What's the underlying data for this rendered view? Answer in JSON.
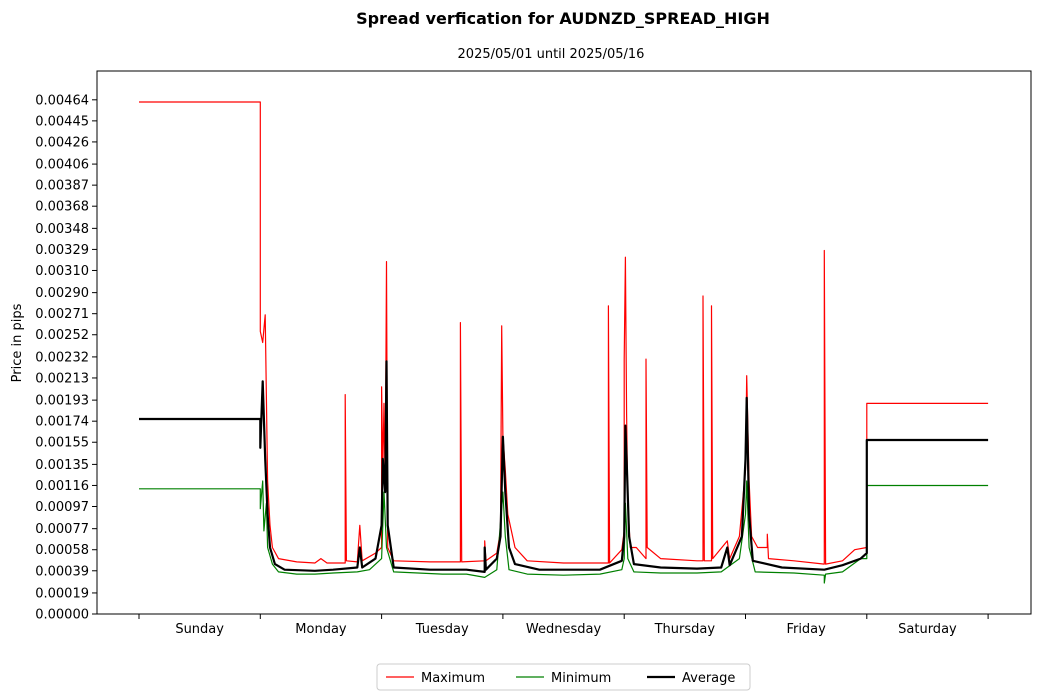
{
  "chart_data": {
    "type": "line",
    "title": "Spread verfication for AUDNZD_SPREAD_HIGH",
    "subtitle": "2025/05/01 until 2025/05/16",
    "xlabel": "",
    "ylabel": "Price in pips",
    "ylim": [
      0,
      0.0049
    ],
    "xlim": [
      -0.35,
      7.35
    ],
    "y_ticks": [
      "0.00000",
      "0.00019",
      "0.00039",
      "0.00058",
      "0.00077",
      "0.00097",
      "0.00116",
      "0.00135",
      "0.00155",
      "0.00174",
      "0.00193",
      "0.00213",
      "0.00232",
      "0.00252",
      "0.00271",
      "0.00290",
      "0.00310",
      "0.00329",
      "0.00348",
      "0.00368",
      "0.00387",
      "0.00406",
      "0.00426",
      "0.00445",
      "0.00464"
    ],
    "x_categories": [
      "Sunday",
      "Monday",
      "Tuesday",
      "Wednesday",
      "Thursday",
      "Friday",
      "Saturday"
    ],
    "grid": false,
    "legend_position": "bottom-center",
    "series": [
      {
        "name": "Maximum",
        "color": "#ff0000",
        "width": 1.2,
        "points": [
          [
            0,
            0.00462
          ],
          [
            1.0,
            0.00462
          ],
          [
            1.0,
            0.00255
          ],
          [
            1.02,
            0.00245
          ],
          [
            1.04,
            0.0027
          ],
          [
            1.06,
            0.0012
          ],
          [
            1.08,
            0.0008
          ],
          [
            1.1,
            0.0006
          ],
          [
            1.15,
            0.0005
          ],
          [
            1.3,
            0.00047
          ],
          [
            1.45,
            0.00046
          ],
          [
            1.5,
            0.0005
          ],
          [
            1.55,
            0.00046
          ],
          [
            1.7,
            0.00046
          ],
          [
            1.7,
            0.00198
          ],
          [
            1.71,
            0.00048
          ],
          [
            1.8,
            0.00047
          ],
          [
            1.82,
            0.0008
          ],
          [
            1.84,
            0.00048
          ],
          [
            1.95,
            0.00055
          ],
          [
            2.0,
            0.0006
          ],
          [
            2.0,
            0.00205
          ],
          [
            2.01,
            0.0013
          ],
          [
            2.02,
            0.0019
          ],
          [
            2.03,
            0.0011
          ],
          [
            2.04,
            0.00318
          ],
          [
            2.05,
            0.0006
          ],
          [
            2.1,
            0.00048
          ],
          [
            2.4,
            0.00047
          ],
          [
            2.6,
            0.00047
          ],
          [
            2.65,
            0.00047
          ],
          [
            2.65,
            0.00263
          ],
          [
            2.66,
            0.00047
          ],
          [
            2.85,
            0.00048
          ],
          [
            2.85,
            0.00066
          ],
          [
            2.86,
            0.00048
          ],
          [
            2.95,
            0.00055
          ],
          [
            2.98,
            0.00075
          ],
          [
            2.99,
            0.0026
          ],
          [
            3.0,
            0.0016
          ],
          [
            3.02,
            0.0013
          ],
          [
            3.04,
            0.0009
          ],
          [
            3.1,
            0.0006
          ],
          [
            3.2,
            0.00048
          ],
          [
            3.5,
            0.00046
          ],
          [
            3.8,
            0.00046
          ],
          [
            3.87,
            0.00046
          ],
          [
            3.87,
            0.00278
          ],
          [
            3.88,
            0.00046
          ],
          [
            3.98,
            0.00058
          ],
          [
            4.0,
            0.00075
          ],
          [
            4.0,
            0.0023
          ],
          [
            4.01,
            0.00322
          ],
          [
            4.02,
            0.0018
          ],
          [
            4.03,
            0.001
          ],
          [
            4.05,
            0.0006
          ],
          [
            4.1,
            0.0006
          ],
          [
            4.18,
            0.0005
          ],
          [
            4.18,
            0.0023
          ],
          [
            4.19,
            0.0006
          ],
          [
            4.3,
            0.0005
          ],
          [
            4.6,
            0.00048
          ],
          [
            4.65,
            0.00048
          ],
          [
            4.65,
            0.00287
          ],
          [
            4.66,
            0.00048
          ],
          [
            4.72,
            0.00048
          ],
          [
            4.72,
            0.00278
          ],
          [
            4.73,
            0.0005
          ],
          [
            4.85,
            0.00066
          ],
          [
            4.87,
            0.0005
          ],
          [
            4.95,
            0.0007
          ],
          [
            5.0,
            0.0013
          ],
          [
            5.01,
            0.00215
          ],
          [
            5.03,
            0.0012
          ],
          [
            5.05,
            0.0007
          ],
          [
            5.1,
            0.0006
          ],
          [
            5.18,
            0.0006
          ],
          [
            5.18,
            0.00072
          ],
          [
            5.19,
            0.0005
          ],
          [
            5.4,
            0.00048
          ],
          [
            5.65,
            0.00045
          ],
          [
            5.65,
            0.00328
          ],
          [
            5.66,
            0.00045
          ],
          [
            5.8,
            0.00048
          ],
          [
            5.9,
            0.00058
          ],
          [
            6.0,
            0.0006
          ],
          [
            6.0,
            0.0019
          ],
          [
            7.0,
            0.0019
          ]
        ]
      },
      {
        "name": "Minimum",
        "color": "#008000",
        "width": 1.2,
        "points": [
          [
            0,
            0.00113
          ],
          [
            1.0,
            0.00113
          ],
          [
            1.0,
            0.00095
          ],
          [
            1.02,
            0.0012
          ],
          [
            1.03,
            0.00075
          ],
          [
            1.05,
            0.001
          ],
          [
            1.06,
            0.0006
          ],
          [
            1.1,
            0.00045
          ],
          [
            1.15,
            0.00038
          ],
          [
            1.3,
            0.00036
          ],
          [
            1.45,
            0.00036
          ],
          [
            1.6,
            0.00037
          ],
          [
            1.8,
            0.00038
          ],
          [
            1.9,
            0.0004
          ],
          [
            2.0,
            0.0005
          ],
          [
            2.02,
            0.0011
          ],
          [
            2.04,
            0.0006
          ],
          [
            2.1,
            0.00038
          ],
          [
            2.3,
            0.00037
          ],
          [
            2.5,
            0.00036
          ],
          [
            2.7,
            0.00036
          ],
          [
            2.85,
            0.00033
          ],
          [
            2.95,
            0.0004
          ],
          [
            3.0,
            0.0011
          ],
          [
            3.02,
            0.0007
          ],
          [
            3.05,
            0.0004
          ],
          [
            3.2,
            0.00036
          ],
          [
            3.5,
            0.00035
          ],
          [
            3.8,
            0.00036
          ],
          [
            3.98,
            0.0004
          ],
          [
            4.0,
            0.0005
          ],
          [
            4.01,
            0.001
          ],
          [
            4.03,
            0.0005
          ],
          [
            4.08,
            0.00038
          ],
          [
            4.3,
            0.00037
          ],
          [
            4.6,
            0.00037
          ],
          [
            4.8,
            0.00038
          ],
          [
            4.95,
            0.0005
          ],
          [
            5.0,
            0.0009
          ],
          [
            5.01,
            0.0012
          ],
          [
            5.03,
            0.0006
          ],
          [
            5.08,
            0.00038
          ],
          [
            5.4,
            0.00037
          ],
          [
            5.65,
            0.00035
          ],
          [
            5.65,
            0.00028
          ],
          [
            5.66,
            0.00036
          ],
          [
            5.8,
            0.00038
          ],
          [
            5.95,
            0.0005
          ],
          [
            6.0,
            0.0005
          ],
          [
            6.0,
            0.00116
          ],
          [
            7.0,
            0.00116
          ]
        ]
      },
      {
        "name": "Average",
        "color": "#000000",
        "width": 2.2,
        "points": [
          [
            0,
            0.00176
          ],
          [
            1.0,
            0.00176
          ],
          [
            1.0,
            0.0015
          ],
          [
            1.02,
            0.0021
          ],
          [
            1.04,
            0.0014
          ],
          [
            1.06,
            0.0009
          ],
          [
            1.08,
            0.0006
          ],
          [
            1.12,
            0.00045
          ],
          [
            1.2,
            0.0004
          ],
          [
            1.45,
            0.00039
          ],
          [
            1.6,
            0.0004
          ],
          [
            1.8,
            0.00042
          ],
          [
            1.82,
            0.0006
          ],
          [
            1.84,
            0.00042
          ],
          [
            1.95,
            0.0005
          ],
          [
            2.0,
            0.0008
          ],
          [
            2.01,
            0.0014
          ],
          [
            2.03,
            0.0011
          ],
          [
            2.04,
            0.00228
          ],
          [
            2.05,
            0.0008
          ],
          [
            2.1,
            0.00042
          ],
          [
            2.4,
            0.0004
          ],
          [
            2.7,
            0.0004
          ],
          [
            2.85,
            0.00038
          ],
          [
            2.85,
            0.0006
          ],
          [
            2.86,
            0.0004
          ],
          [
            2.95,
            0.0005
          ],
          [
            2.98,
            0.0007
          ],
          [
            3.0,
            0.0016
          ],
          [
            3.02,
            0.0011
          ],
          [
            3.05,
            0.0006
          ],
          [
            3.1,
            0.00045
          ],
          [
            3.3,
            0.0004
          ],
          [
            3.8,
            0.0004
          ],
          [
            3.98,
            0.00048
          ],
          [
            4.0,
            0.0007
          ],
          [
            4.01,
            0.0017
          ],
          [
            4.02,
            0.0014
          ],
          [
            4.04,
            0.0007
          ],
          [
            4.08,
            0.00045
          ],
          [
            4.3,
            0.00042
          ],
          [
            4.6,
            0.00041
          ],
          [
            4.8,
            0.00042
          ],
          [
            4.85,
            0.0006
          ],
          [
            4.87,
            0.00044
          ],
          [
            4.97,
            0.0007
          ],
          [
            5.0,
            0.0014
          ],
          [
            5.01,
            0.00195
          ],
          [
            5.03,
            0.0009
          ],
          [
            5.06,
            0.00048
          ],
          [
            5.3,
            0.00042
          ],
          [
            5.65,
            0.0004
          ],
          [
            5.8,
            0.00044
          ],
          [
            5.95,
            0.0005
          ],
          [
            6.0,
            0.00055
          ],
          [
            6.0,
            0.00157
          ],
          [
            7.0,
            0.00157
          ]
        ]
      }
    ]
  }
}
